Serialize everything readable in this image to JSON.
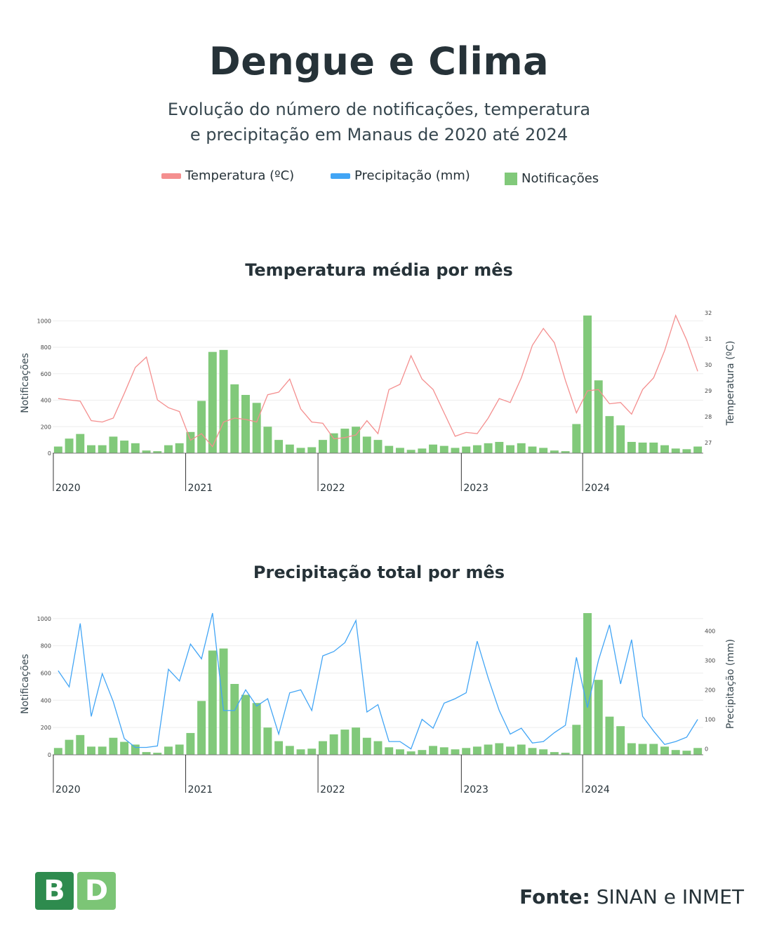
{
  "header": {
    "title": "Dengue e Clima",
    "subtitle_line1": "Evolução do número de notificações, temperatura",
    "subtitle_line2": "e precipitação em Manaus de 2020 até 2024"
  },
  "legend": {
    "temperature": "Temperatura (ºC)",
    "precipitation": "Precipitação (mm)",
    "notifications": "Notificações"
  },
  "colors": {
    "temperature": "#f48f8f",
    "precipitation": "#42a5f5",
    "notifications": "#81c97a",
    "logo_dark": "#2e8b4e",
    "logo_light": "#7cc576"
  },
  "footer": {
    "logo_b": "B",
    "logo_d": "D",
    "source_label": "Fonte:",
    "source_value": "SINAN e INMET"
  },
  "chart_data": [
    {
      "type": "bar",
      "title": "Temperatura média por mês",
      "ylabel": "Notificações",
      "ylim": [
        0,
        1060
      ],
      "yticks": [
        0,
        200,
        400,
        600,
        800,
        1000
      ],
      "y2label": "Temperatura (ºC)",
      "y2lim": [
        26.6,
        32
      ],
      "y2ticks": [
        27,
        28,
        29,
        30,
        31,
        32
      ],
      "x_year_labels": [
        "2020",
        "2021",
        "2022",
        "2023",
        "2024"
      ],
      "x_year_start_index": [
        0,
        12,
        24,
        37,
        48
      ],
      "series": [
        {
          "name": "Notificações",
          "type": "bar",
          "axis": "left",
          "values": [
            50,
            110,
            145,
            60,
            60,
            125,
            95,
            75,
            20,
            15,
            60,
            75,
            160,
            395,
            765,
            780,
            520,
            440,
            380,
            200,
            100,
            65,
            40,
            45,
            100,
            150,
            185,
            200,
            125,
            100,
            55,
            40,
            25,
            35,
            65,
            55,
            40,
            50,
            60,
            75,
            85,
            60,
            75,
            50,
            40,
            20,
            15,
            220,
            1040,
            550,
            280,
            210,
            85,
            80,
            80,
            60,
            35,
            30,
            50
          ]
        },
        {
          "name": "Temperatura (ºC)",
          "type": "line",
          "axis": "right",
          "values": [
            28.7,
            28.65,
            28.6,
            27.85,
            27.8,
            27.95,
            28.9,
            29.9,
            30.3,
            28.65,
            28.35,
            28.2,
            27.1,
            27.35,
            26.85,
            27.8,
            27.95,
            27.9,
            27.8,
            28.85,
            28.95,
            29.45,
            28.3,
            27.8,
            27.75,
            27.15,
            27.2,
            27.3,
            27.85,
            27.35,
            29.05,
            29.25,
            30.35,
            29.45,
            29.05,
            28.15,
            27.25,
            27.4,
            27.35,
            27.95,
            28.7,
            28.55,
            29.5,
            30.75,
            31.4,
            30.85,
            29.4,
            28.15,
            29.0,
            29.05,
            28.5,
            28.55,
            28.1,
            29.05,
            29.5,
            30.55,
            31.9,
            30.95,
            29.75
          ]
        }
      ]
    },
    {
      "type": "bar",
      "title": "Precipitação total por mês",
      "ylabel": "Notificações",
      "ylim": [
        0,
        1040
      ],
      "yticks": [
        0,
        200,
        400,
        600,
        800,
        1000
      ],
      "y2label": "Precipitação (mm)",
      "y2lim": [
        -20,
        460
      ],
      "y2ticks": [
        0,
        100,
        200,
        300,
        400
      ],
      "x_year_labels": [
        "2020",
        "2021",
        "2022",
        "2023",
        "2024"
      ],
      "x_year_start_index": [
        0,
        12,
        24,
        37,
        48
      ],
      "series": [
        {
          "name": "Notificações",
          "type": "bar",
          "axis": "left",
          "values": [
            50,
            110,
            145,
            60,
            60,
            125,
            95,
            75,
            20,
            15,
            60,
            75,
            160,
            395,
            765,
            780,
            520,
            440,
            380,
            200,
            100,
            65,
            40,
            45,
            100,
            150,
            185,
            200,
            125,
            100,
            55,
            40,
            25,
            35,
            65,
            55,
            40,
            50,
            60,
            75,
            85,
            60,
            75,
            50,
            40,
            20,
            15,
            220,
            1040,
            550,
            280,
            210,
            85,
            80,
            80,
            60,
            35,
            30,
            50
          ]
        },
        {
          "name": "Precipitação (mm)",
          "type": "line",
          "axis": "right",
          "values": [
            265,
            210,
            425,
            110,
            255,
            160,
            35,
            5,
            5,
            10,
            270,
            230,
            355,
            305,
            460,
            130,
            130,
            200,
            145,
            170,
            50,
            190,
            200,
            130,
            315,
            330,
            360,
            435,
            125,
            150,
            25,
            25,
            0,
            100,
            70,
            155,
            170,
            190,
            365,
            240,
            130,
            50,
            70,
            20,
            25,
            55,
            80,
            310,
            140,
            300,
            420,
            220,
            370,
            110,
            60,
            15,
            25,
            40,
            100
          ]
        }
      ]
    }
  ]
}
